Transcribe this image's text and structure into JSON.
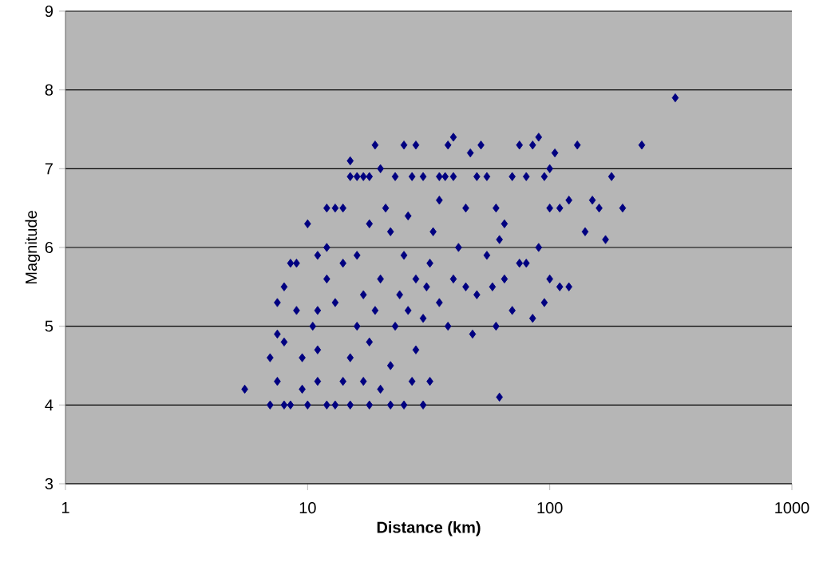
{
  "chart_data": {
    "type": "scatter",
    "xlabel": "Distance (km)",
    "ylabel": "Magnitude",
    "log": "x",
    "xlim": [
      1,
      1000
    ],
    "xticks": [
      1,
      10,
      100,
      1000
    ],
    "ylim": [
      3,
      9
    ],
    "yticks": [
      3,
      4,
      5,
      6,
      7,
      8,
      9
    ],
    "grid": "y",
    "marker": "diamond",
    "series": [
      {
        "color": "#000080",
        "x": [
          5.5,
          7,
          7.5,
          8,
          8.5,
          7,
          7.5,
          8,
          7.5,
          8,
          9,
          8.5,
          9,
          10,
          11,
          10.5,
          9.5,
          9.5,
          10,
          11,
          11,
          11,
          12,
          12,
          12,
          13,
          14,
          15,
          13,
          14,
          15,
          16,
          17,
          16,
          18,
          18,
          19,
          20,
          21,
          22,
          20,
          19,
          18,
          17,
          18,
          20,
          22,
          23,
          24,
          25,
          26,
          27,
          28,
          25,
          23,
          25,
          27,
          28,
          30,
          31,
          32,
          33,
          35,
          37,
          38,
          40,
          35,
          38,
          40,
          42,
          45,
          47,
          50,
          52,
          55,
          45,
          50,
          48,
          55,
          60,
          62,
          58,
          65,
          60,
          70,
          62,
          30,
          32,
          70,
          75,
          80,
          85,
          90,
          95,
          100,
          105,
          100,
          110,
          120,
          130,
          140,
          150,
          160,
          170,
          180,
          200,
          240,
          330,
          90,
          95,
          100,
          110,
          120,
          85,
          75,
          65,
          80,
          30,
          35,
          40,
          15,
          16,
          17,
          28,
          26,
          22,
          12,
          14,
          13,
          15
        ],
        "values": [
          4.2,
          4.0,
          4.3,
          4.0,
          4.0,
          4.6,
          4.9,
          4.8,
          5.3,
          5.5,
          5.2,
          5.8,
          5.8,
          6.3,
          5.9,
          5.0,
          4.6,
          4.2,
          4.0,
          4.3,
          4.7,
          5.2,
          5.6,
          6.0,
          6.5,
          6.5,
          6.5,
          7.1,
          4.0,
          4.3,
          4.6,
          5.0,
          5.4,
          5.9,
          6.3,
          6.9,
          7.3,
          7.0,
          6.5,
          6.2,
          5.6,
          5.2,
          4.8,
          4.3,
          4.0,
          4.2,
          4.5,
          5.0,
          5.4,
          5.9,
          6.4,
          6.9,
          7.3,
          7.3,
          6.9,
          4.0,
          4.3,
          4.7,
          5.1,
          5.5,
          5.8,
          6.2,
          6.6,
          6.9,
          7.3,
          7.4,
          5.3,
          5.0,
          5.6,
          6.0,
          6.5,
          7.2,
          6.9,
          7.3,
          6.9,
          5.5,
          5.4,
          4.9,
          5.9,
          6.5,
          6.1,
          5.5,
          5.6,
          5.0,
          5.2,
          4.1,
          4.0,
          4.3,
          6.9,
          7.3,
          6.9,
          7.3,
          7.4,
          6.9,
          7.0,
          7.2,
          6.5,
          6.5,
          6.6,
          7.3,
          6.2,
          6.6,
          6.5,
          6.1,
          6.9,
          6.5,
          7.3,
          7.9,
          6.0,
          5.3,
          5.6,
          5.5,
          5.5,
          5.1,
          5.8,
          6.3,
          5.8,
          6.9,
          6.9,
          6.9,
          6.9,
          6.9,
          6.9,
          5.6,
          5.2,
          4.0,
          4.0,
          5.8,
          5.3,
          4.0
        ]
      }
    ]
  }
}
